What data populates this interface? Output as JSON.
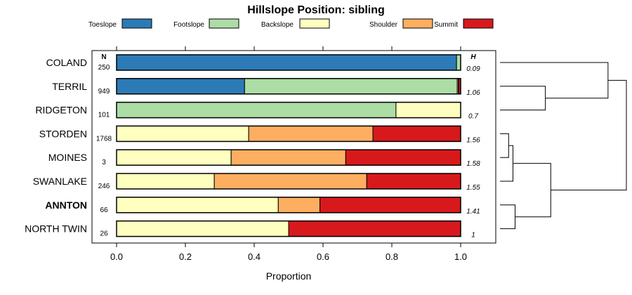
{
  "chart_data": {
    "type": "bar",
    "stacked": true,
    "orientation": "horizontal",
    "title": "Hillslope Position: sibling",
    "xlabel": "Proportion",
    "xlim": [
      0,
      1
    ],
    "xticks": [
      "0.0",
      "0.2",
      "0.4",
      "0.6",
      "0.8",
      "1.0"
    ],
    "n_header": "N",
    "h_header": "H",
    "legend_position": "top",
    "categories": [
      "COLAND",
      "TERRIL",
      "RIDGETON",
      "STORDEN",
      "MOINES",
      "SWANLAKE",
      "ANNTON",
      "NORTH TWIN"
    ],
    "highlighted": "ANNTON",
    "n": [
      "250",
      "949",
      "101",
      "1768",
      "3",
      "246",
      "66",
      "26"
    ],
    "h": [
      "0.09",
      "1.06",
      "0.7",
      "1.56",
      "1.58",
      "1.55",
      "1.41",
      "1"
    ],
    "series": [
      {
        "name": "Toeslope",
        "color": "#2c7bb6",
        "values": [
          0.988,
          0.372,
          0,
          0,
          0,
          0,
          0,
          0
        ]
      },
      {
        "name": "Footslope",
        "color": "#abdda4",
        "values": [
          0.012,
          0.618,
          0.812,
          0,
          0,
          0,
          0,
          0
        ]
      },
      {
        "name": "Backslope",
        "color": "#ffffbf",
        "values": [
          0,
          0.003,
          0.188,
          0.384,
          0.333,
          0.284,
          0.47,
          0.5
        ]
      },
      {
        "name": "Shoulder",
        "color": "#fdae61",
        "values": [
          0,
          0.001,
          0,
          0.361,
          0.333,
          0.443,
          0.121,
          0
        ]
      },
      {
        "name": "Summit",
        "color": "#d7191c",
        "values": [
          0,
          0.006,
          0,
          0.255,
          0.334,
          0.273,
          0.409,
          0.5
        ]
      }
    ],
    "dendrogram": {
      "order": [
        "COLAND",
        "TERRIL",
        "RIDGETON",
        "STORDEN",
        "MOINES",
        "SWANLAKE",
        "ANNTON",
        "NORTH TWIN"
      ],
      "merges": [
        {
          "a": "TERRIL",
          "b": "RIDGETON",
          "height": 0.42
        },
        {
          "a": "COLAND",
          "b": [
            "TERRIL",
            "RIDGETON"
          ],
          "height": 1.0
        },
        {
          "a": "STORDEN",
          "b": "MOINES",
          "height": 0.08
        },
        {
          "a": [
            "STORDEN",
            "MOINES"
          ],
          "b": "SWANLAKE",
          "height": 0.12
        },
        {
          "a": "ANNTON",
          "b": "NORTH TWIN",
          "height": 0.14
        },
        {
          "a": [
            "STORDEN",
            "MOINES",
            "SWANLAKE"
          ],
          "b": [
            "ANNTON",
            "NORTH TWIN"
          ],
          "height": 0.47
        },
        {
          "a": [
            "COLAND",
            "TERRIL",
            "RIDGETON"
          ],
          "b": [
            "STORDEN",
            "MOINES",
            "SWANLAKE",
            "ANNTON",
            "NORTH TWIN"
          ],
          "height": 1.17
        }
      ]
    }
  }
}
